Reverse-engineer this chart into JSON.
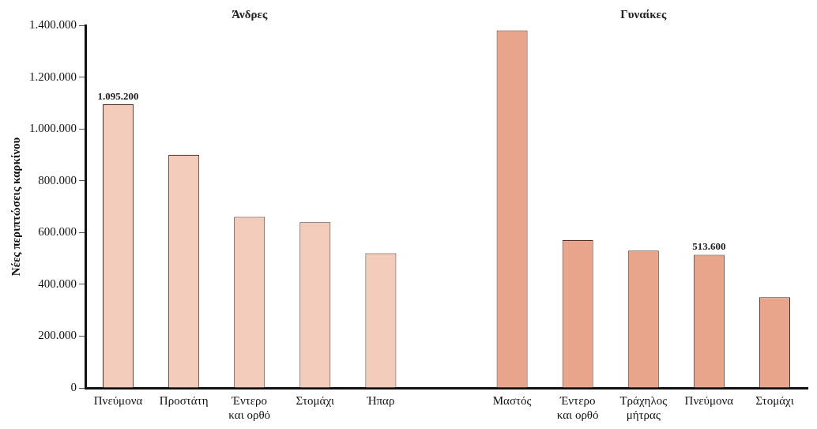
{
  "chart_data": {
    "type": "bar",
    "categories": [
      "Πνεύμονα",
      "Προστάτη",
      "Έντερο και ορθό",
      "Στομάχι",
      "Ήπαρ",
      null,
      "Μαστός",
      "Έντερο και ορθό",
      "Τράχηλος μήτρας",
      "Πνεύμονα",
      "Στομάχι"
    ],
    "values": [
      1095200,
      900000,
      660000,
      640000,
      520000,
      null,
      1380000,
      570000,
      530000,
      513600,
      350000
    ],
    "colors": [
      "#f3cbbb",
      "#f3cbbb",
      "#f3cbbb",
      "#f3cbbb",
      "#f3cbbb",
      "#e9a58b",
      "#e9a58b",
      "#e9a58b",
      "#e9a58b",
      "#e9a58b",
      "#e9a58b"
    ],
    "value_labels": [
      "1.095.200",
      null,
      null,
      null,
      null,
      null,
      null,
      null,
      null,
      "513.600",
      null
    ],
    "ylabel": "Νέες περιπτώσεις καρκίνου",
    "ylim": [
      0,
      1400000
    ],
    "yticks": [
      {
        "value": 0,
        "label": "0"
      },
      {
        "value": 200000,
        "label": "200.000"
      },
      {
        "value": 400000,
        "label": "400.000"
      },
      {
        "value": 600000,
        "label": "600.000"
      },
      {
        "value": 800000,
        "label": "800.000"
      },
      {
        "value": 1000000,
        "label": "1.000.000"
      },
      {
        "value": 1200000,
        "label": "1.200.000"
      },
      {
        "value": 1400000,
        "label": "1.400.000"
      }
    ],
    "annotations": [
      "Άνδρες",
      "Γυναίκες"
    ],
    "grid": false,
    "legend": false
  }
}
